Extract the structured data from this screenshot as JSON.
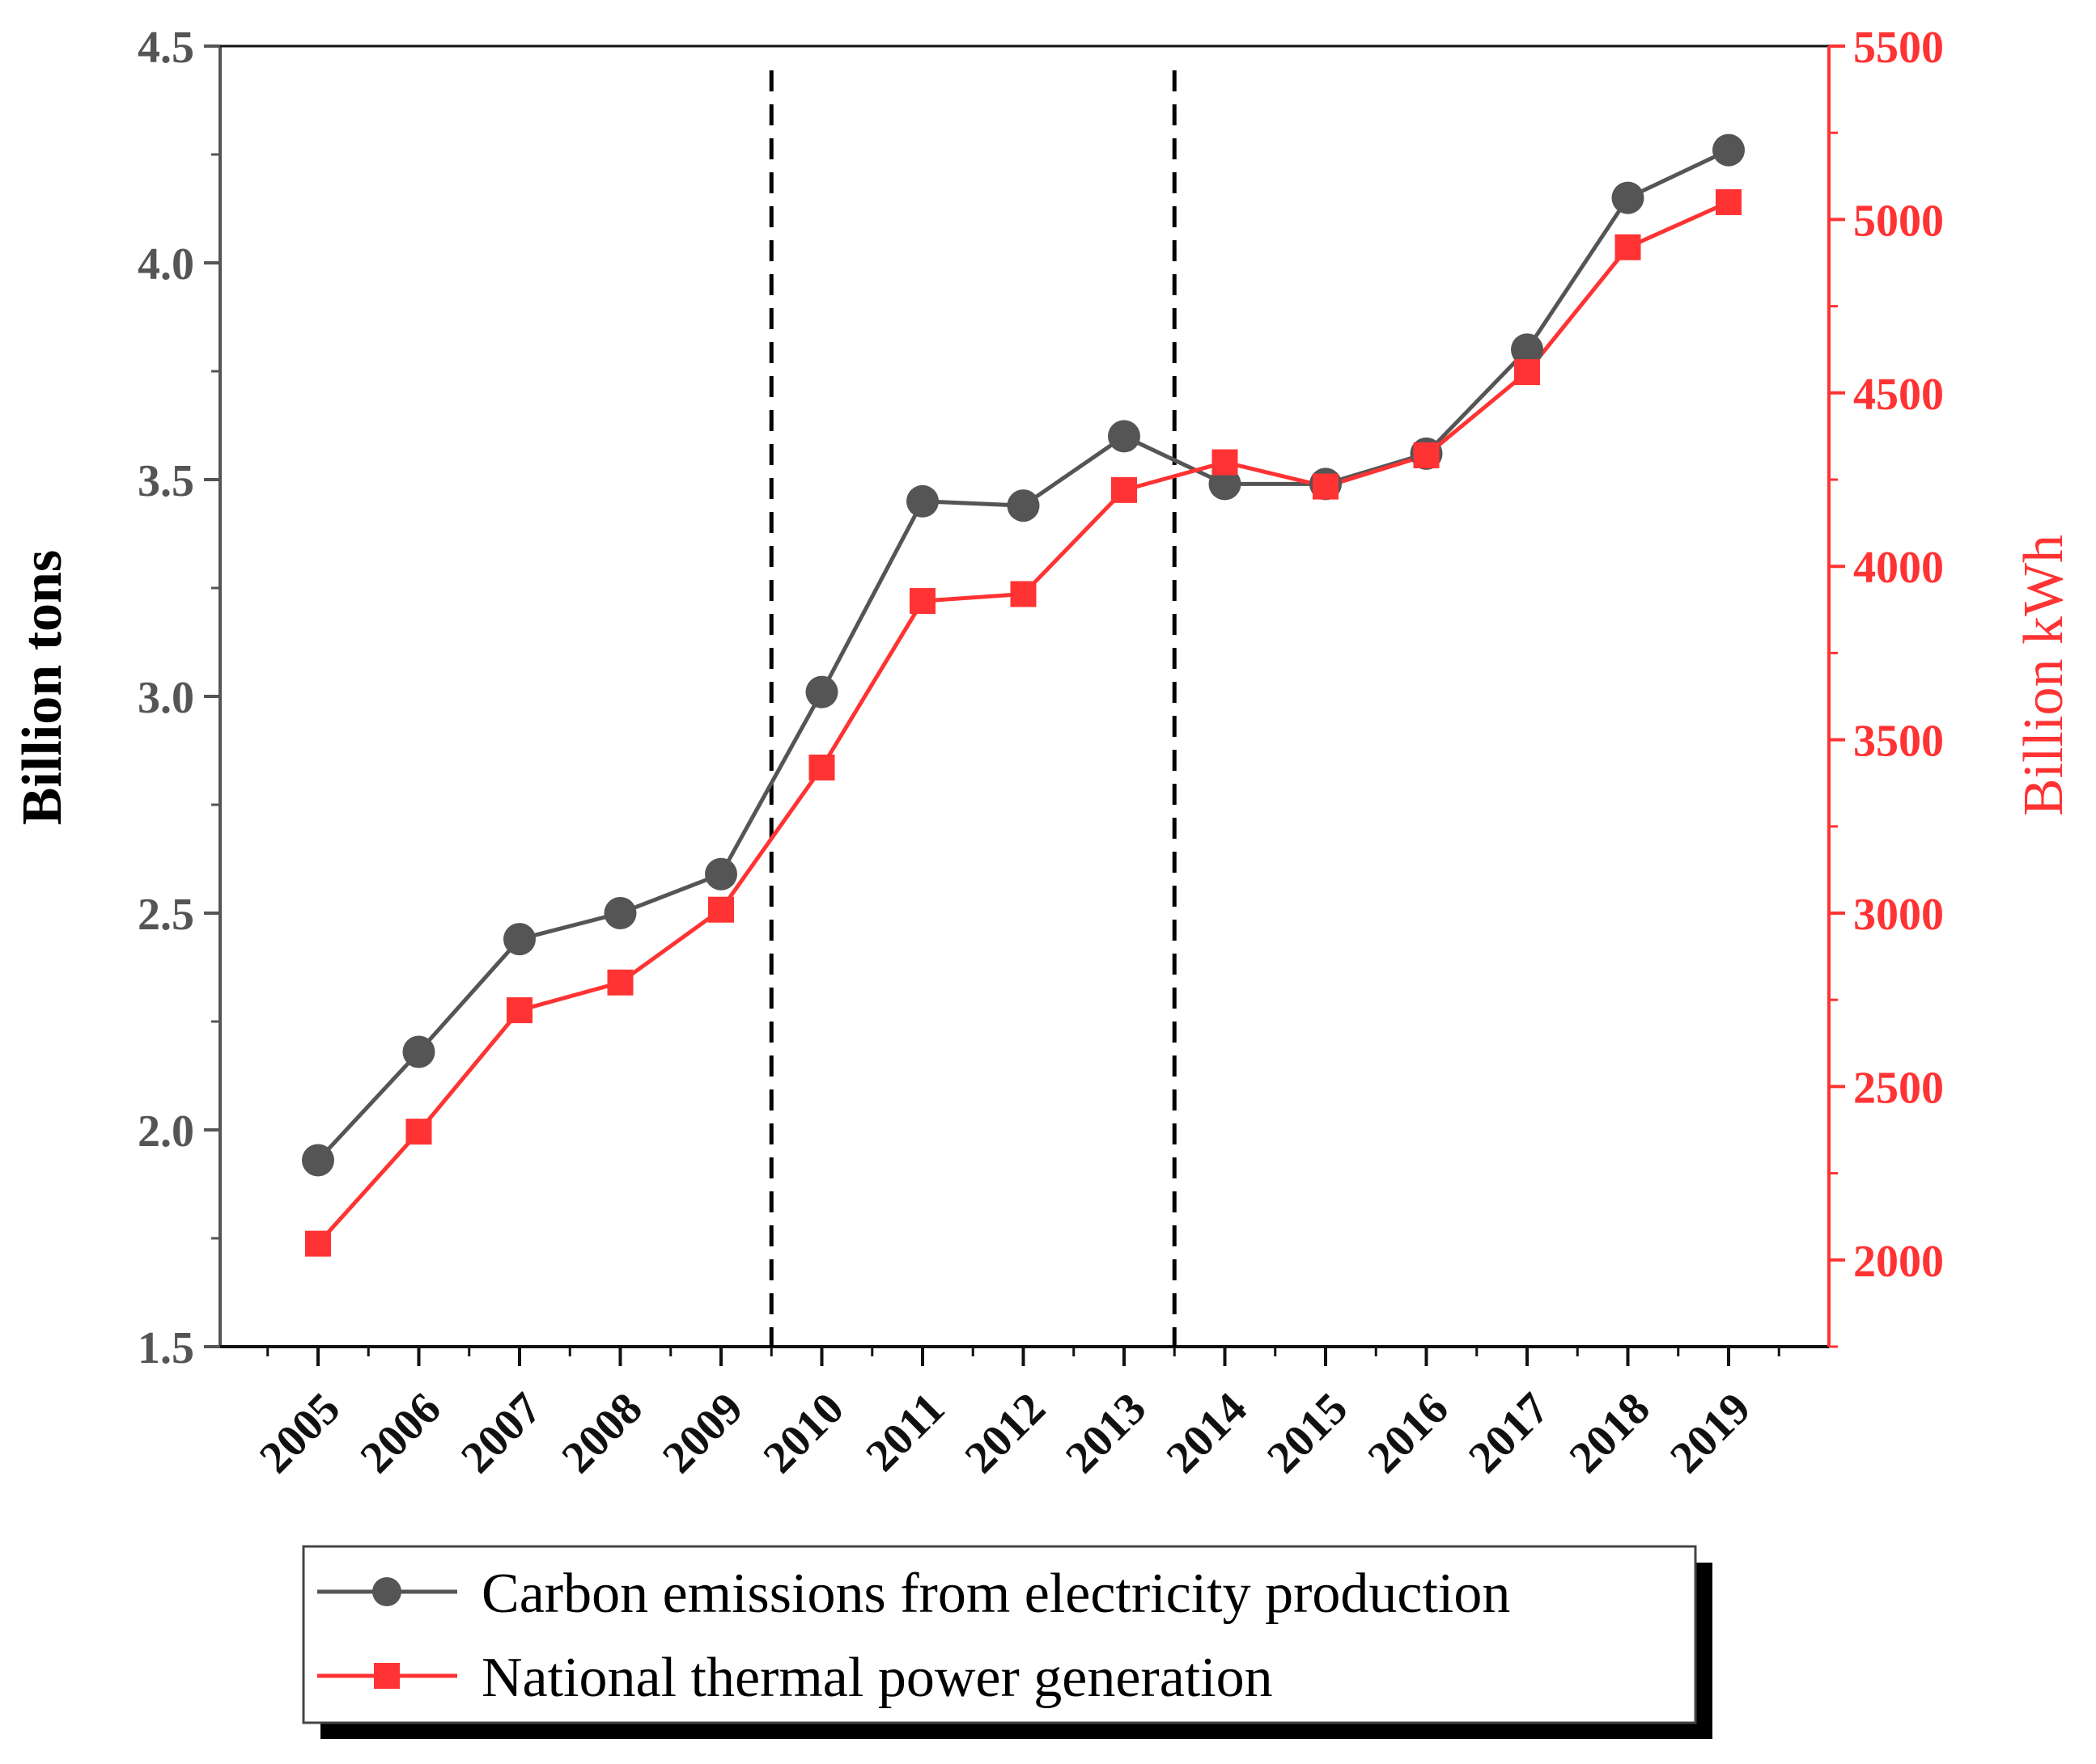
{
  "chart_data": {
    "type": "line",
    "categories": [
      "2005",
      "2006",
      "2007",
      "2008",
      "2009",
      "2010",
      "2011",
      "2012",
      "2013",
      "2014",
      "2015",
      "2016",
      "2017",
      "2018",
      "2019"
    ],
    "x_tick_labels": [
      "2005",
      "2006",
      "2007",
      "2008",
      "2009",
      "2010",
      "2011",
      "2012",
      "2013",
      "2014",
      "2015",
      "2016",
      "2017",
      "2018",
      "2019"
    ],
    "y_left": {
      "label": "Billion tons",
      "range": [
        1.5,
        4.5
      ],
      "ticks": [
        1.5,
        2.0,
        2.5,
        3.0,
        3.5,
        4.0,
        4.5
      ],
      "tick_labels": [
        "1.5",
        "2.0",
        "2.5",
        "3.0",
        "3.5",
        "4.0",
        "4.5"
      ],
      "color": "#555555"
    },
    "y_right": {
      "label": "Billion kWh",
      "range": [
        1750,
        5500
      ],
      "ticks": [
        2000,
        2500,
        3000,
        3500,
        4000,
        4500,
        5000,
        5500
      ],
      "tick_labels": [
        "2000",
        "2500",
        "3000",
        "3500",
        "4000",
        "4500",
        "5000",
        "5500"
      ],
      "color": "#ff3333"
    },
    "series": [
      {
        "name": "Carbon emissions from electricity production",
        "axis": "left",
        "marker": "circle",
        "color": "#555555",
        "values": [
          1.93,
          2.18,
          2.44,
          2.5,
          2.59,
          3.01,
          3.45,
          3.44,
          3.6,
          3.49,
          3.49,
          3.56,
          3.8,
          4.15,
          4.26
        ]
      },
      {
        "name": "National thermal power generation",
        "axis": "right",
        "marker": "square",
        "color": "#ff3333",
        "values": [
          2047,
          2370,
          2720,
          2800,
          3010,
          3420,
          3900,
          3920,
          4220,
          4300,
          4230,
          4320,
          4560,
          4920,
          5050
        ]
      }
    ],
    "vertical_dashed_lines_between": [
      [
        "2009",
        "2010"
      ],
      [
        "2013",
        "2014"
      ]
    ],
    "legend_position": "bottom",
    "grid": false
  }
}
